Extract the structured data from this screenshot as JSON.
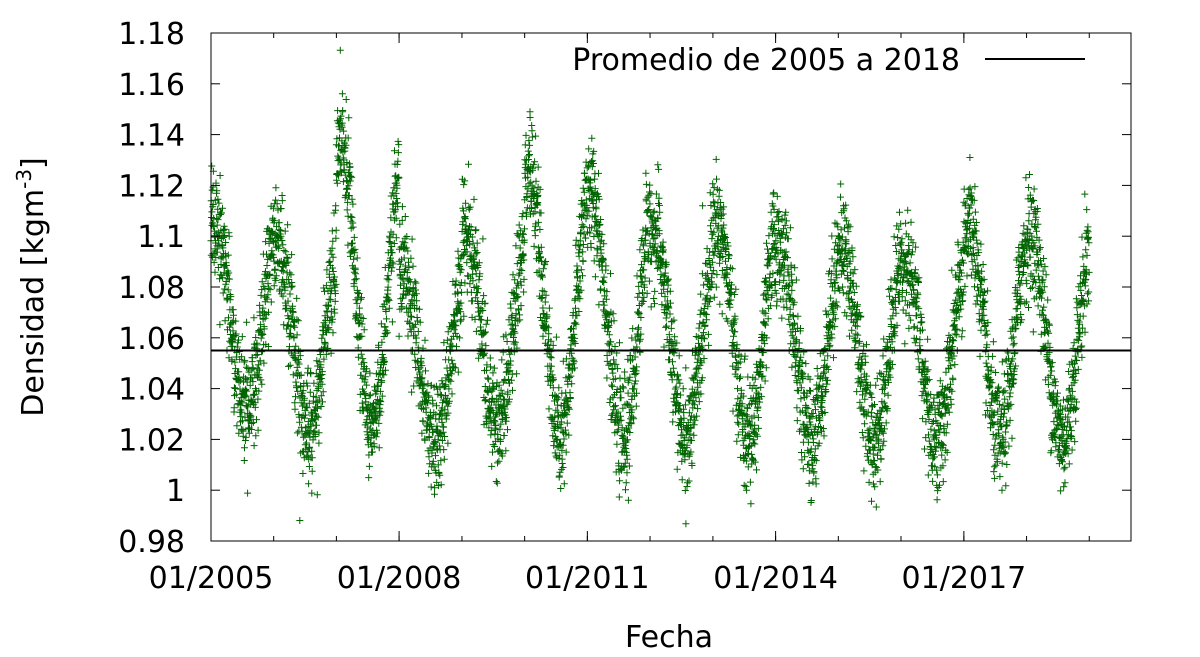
{
  "chart_data": {
    "type": "scatter",
    "xlabel": "Fecha",
    "ylabel": "Densidad [kgm",
    "ylabel_sup": "-3",
    "ylabel_close": "]",
    "xlim": [
      "2005-01-01",
      "2019-09-01"
    ],
    "ylim": [
      0.98,
      1.18
    ],
    "y_ticks": [
      "0.98",
      "1",
      "1.02",
      "1.04",
      "1.06",
      "1.08",
      "1.1",
      "1.12",
      "1.14",
      "1.16",
      "1.18"
    ],
    "x_ticks": [
      {
        "date": "2005-01-01",
        "label": "01/2005"
      },
      {
        "date": "2008-01-01",
        "label": "01/2008"
      },
      {
        "date": "2011-01-01",
        "label": "01/2011"
      },
      {
        "date": "2014-01-01",
        "label": "01/2014"
      },
      {
        "date": "2017-01-01",
        "label": "01/2017"
      }
    ],
    "marker_color": "#006400",
    "marker": "plus",
    "grid": false,
    "legend_position": "top-right",
    "series": [
      {
        "start_date": "2005-01-01",
        "end_date": "2018-12-31",
        "mean": 1.055,
        "summer_low": [
          1.01,
          1.005,
          1.005,
          1.0,
          1.005,
          1.0,
          1.0,
          1.0,
          1.0,
          1.0,
          1.0,
          1.0,
          1.0,
          1.0
        ],
        "winter_high": [
          1.125,
          1.115,
          1.155,
          1.105,
          1.12,
          1.145,
          1.135,
          1.12,
          1.125,
          1.115,
          1.115,
          1.11,
          1.125,
          1.12
        ]
      }
    ],
    "average_line": {
      "name": "Promedio de 2005 a 2018",
      "value": 1.055,
      "color": "#000000"
    }
  }
}
